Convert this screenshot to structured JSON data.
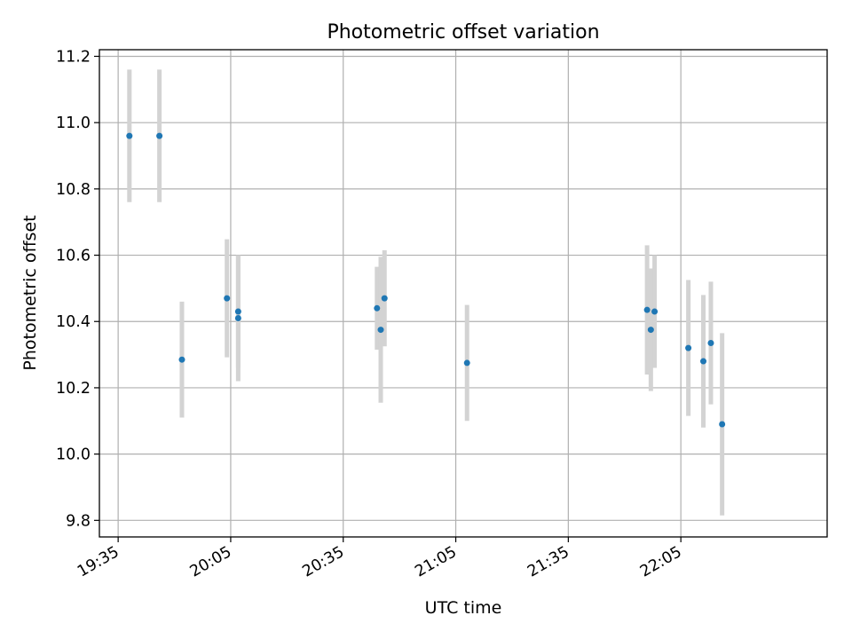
{
  "chart_data": {
    "type": "scatter",
    "title": "Photometric offset variation",
    "xlabel": "UTC time",
    "ylabel": "Photometric offset",
    "x_ticks": [
      "19:35",
      "20:05",
      "20:35",
      "21:05",
      "21:35",
      "22:05"
    ],
    "y_ticks": [
      "9.8",
      "10.0",
      "10.2",
      "10.4",
      "10.6",
      "10.8",
      "11.0",
      "11.2"
    ],
    "xlim": [
      "19:30",
      "22:44"
    ],
    "ylim": [
      9.75,
      11.22
    ],
    "grid": true,
    "x_ticklabel_rotation": 30,
    "points": [
      {
        "x": "19:38",
        "y": 10.96,
        "err": 0.2
      },
      {
        "x": "19:46",
        "y": 10.96,
        "err": 0.2
      },
      {
        "x": "19:52",
        "y": 10.285,
        "err": 0.175
      },
      {
        "x": "20:04",
        "y": 10.47,
        "err": 0.178
      },
      {
        "x": "20:07",
        "y": 10.41,
        "err": 0.19
      },
      {
        "x": "20:07",
        "y": 10.43,
        "err": 0.17
      },
      {
        "x": "20:44",
        "y": 10.44,
        "err": 0.125
      },
      {
        "x": "20:45",
        "y": 10.375,
        "err": 0.22
      },
      {
        "x": "20:46",
        "y": 10.47,
        "err": 0.145
      },
      {
        "x": "21:08",
        "y": 10.275,
        "err": 0.175
      },
      {
        "x": "21:56",
        "y": 10.435,
        "err": 0.195
      },
      {
        "x": "21:57",
        "y": 10.375,
        "err": 0.185
      },
      {
        "x": "21:58",
        "y": 10.43,
        "err": 0.17
      },
      {
        "x": "22:07",
        "y": 10.32,
        "err": 0.205
      },
      {
        "x": "22:11",
        "y": 10.28,
        "err": 0.2
      },
      {
        "x": "22:13",
        "y": 10.335,
        "err": 0.185
      },
      {
        "x": "22:16",
        "y": 10.09,
        "err": 0.275
      }
    ],
    "colors": {
      "marker": "#1f77b4",
      "errorbar": "#d3d3d3",
      "grid": "#b0b0b0"
    }
  }
}
